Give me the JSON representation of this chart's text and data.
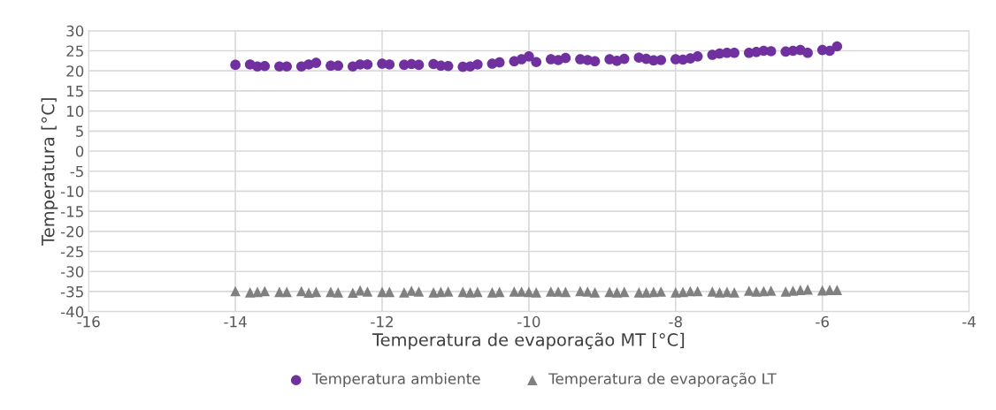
{
  "chart_data": {
    "type": "scatter",
    "xlabel": "Temperatura de evaporação MT [°C]",
    "ylabel": "Temperatura [°C]",
    "x": [
      -14.0,
      -13.8,
      -13.7,
      -13.6,
      -13.4,
      -13.3,
      -13.1,
      -13.0,
      -12.9,
      -12.7,
      -12.6,
      -12.4,
      -12.3,
      -12.2,
      -12.0,
      -11.9,
      -11.7,
      -11.6,
      -11.5,
      -11.3,
      -11.2,
      -11.1,
      -10.9,
      -10.8,
      -10.7,
      -10.5,
      -10.4,
      -10.2,
      -10.1,
      -10.0,
      -9.9,
      -9.7,
      -9.6,
      -9.5,
      -9.3,
      -9.2,
      -9.1,
      -8.9,
      -8.8,
      -8.7,
      -8.5,
      -8.4,
      -8.3,
      -8.2,
      -8.0,
      -7.9,
      -7.8,
      -7.7,
      -7.5,
      -7.4,
      -7.3,
      -7.2,
      -7.0,
      -6.9,
      -6.8,
      -6.7,
      -6.5,
      -6.4,
      -6.3,
      -6.2,
      -6.0,
      -5.9,
      -5.8
    ],
    "series": [
      {
        "name": "Temperatura ambiente",
        "color": "#7030a0",
        "marker": "circle",
        "values": [
          21.5,
          21.6,
          21.1,
          21.2,
          21.1,
          21.1,
          21.1,
          21.6,
          22.0,
          21.3,
          21.3,
          21.1,
          21.6,
          21.6,
          21.8,
          21.6,
          21.5,
          21.7,
          21.5,
          21.7,
          21.3,
          21.2,
          21.0,
          21.1,
          21.6,
          21.8,
          22.1,
          22.4,
          22.9,
          23.6,
          22.2,
          22.9,
          22.7,
          23.2,
          22.9,
          22.7,
          22.4,
          22.9,
          22.5,
          23.0,
          23.3,
          23.0,
          22.6,
          22.7,
          22.9,
          22.8,
          23.1,
          23.6,
          24.0,
          24.3,
          24.5,
          24.5,
          24.5,
          24.7,
          25.0,
          24.9,
          24.8,
          25.0,
          25.2,
          24.5,
          25.2,
          25.0,
          26.1
        ]
      },
      {
        "name": "Temperatura de evaporação LT",
        "color": "#808080",
        "marker": "triangle",
        "values": [
          -34.9,
          -35.2,
          -35.1,
          -34.9,
          -35.1,
          -35.1,
          -34.9,
          -35.3,
          -35.1,
          -35.1,
          -35.2,
          -35.3,
          -34.7,
          -35.0,
          -35.1,
          -35.1,
          -35.2,
          -34.8,
          -35.0,
          -35.2,
          -35.1,
          -35.0,
          -35.1,
          -35.2,
          -35.1,
          -35.2,
          -35.1,
          -35.0,
          -35.0,
          -35.1,
          -35.2,
          -35.0,
          -35.0,
          -35.1,
          -34.9,
          -35.0,
          -35.2,
          -35.1,
          -35.2,
          -35.1,
          -35.2,
          -35.2,
          -35.1,
          -35.0,
          -35.2,
          -35.1,
          -34.9,
          -34.9,
          -35.0,
          -35.2,
          -35.1,
          -35.2,
          -34.8,
          -35.0,
          -34.9,
          -34.8,
          -35.0,
          -34.8,
          -34.6,
          -34.5,
          -34.7,
          -34.6,
          -34.6
        ]
      }
    ],
    "xlim": [
      -16,
      -4
    ],
    "xticks": [
      -16,
      -14,
      -12,
      -10,
      -8,
      -6,
      -4
    ],
    "ylim": [
      -40,
      30
    ],
    "yticks": [
      -40,
      -35,
      -30,
      -25,
      -20,
      -15,
      -10,
      -5,
      0,
      5,
      10,
      15,
      20,
      25,
      30
    ],
    "grid": true,
    "legend": "bottom"
  }
}
